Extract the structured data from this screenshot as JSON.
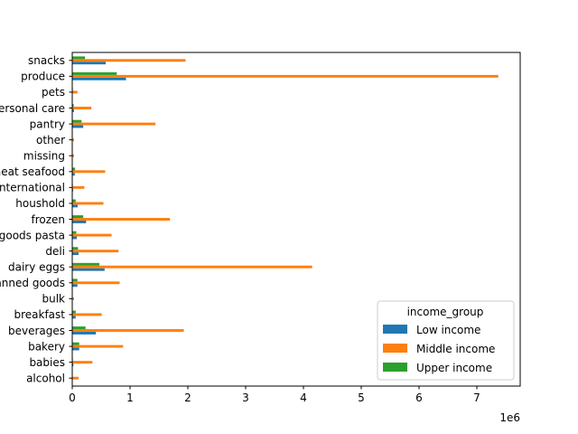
{
  "chart_data": {
    "type": "bar",
    "orientation": "horizontal",
    "categories": [
      "alcohol",
      "babies",
      "bakery",
      "beverages",
      "breakfast",
      "bulk",
      "canned goods",
      "dairy eggs",
      "deli",
      "dry goods pasta",
      "frozen",
      "houshold",
      "international",
      "meat seafood",
      "missing",
      "other",
      "pantry",
      "personal care",
      "pets",
      "produce",
      "snacks"
    ],
    "series": [
      {
        "name": "Low income",
        "color": "#1f77b4",
        "values": [
          8000,
          20000,
          120000,
          410000,
          60000,
          3000,
          90000,
          560000,
          110000,
          80000,
          240000,
          95000,
          15000,
          45000,
          5000,
          3000,
          190000,
          30000,
          5000,
          930000,
          580000
        ]
      },
      {
        "name": "Middle income",
        "color": "#ff7f0e",
        "values": [
          110000,
          350000,
          880000,
          1930000,
          510000,
          30000,
          820000,
          4150000,
          800000,
          680000,
          1690000,
          540000,
          210000,
          570000,
          30000,
          30000,
          1440000,
          330000,
          90000,
          7370000,
          1960000
        ]
      },
      {
        "name": "Upper income",
        "color": "#2ca02c",
        "values": [
          5000,
          10000,
          120000,
          230000,
          60000,
          3000,
          90000,
          470000,
          100000,
          70000,
          190000,
          60000,
          10000,
          50000,
          5000,
          3000,
          160000,
          25000,
          10000,
          770000,
          220000
        ]
      }
    ],
    "xlim": [
      0,
      7750000
    ],
    "x_ticks": [
      0,
      1000000,
      2000000,
      3000000,
      4000000,
      5000000,
      6000000,
      7000000
    ],
    "x_tick_labels": [
      "0",
      "1",
      "2",
      "3",
      "4",
      "5",
      "6",
      "7"
    ],
    "x_offset_text": "1e6",
    "legend": {
      "title": "income_group",
      "placement": "lower right"
    },
    "grid": false
  }
}
